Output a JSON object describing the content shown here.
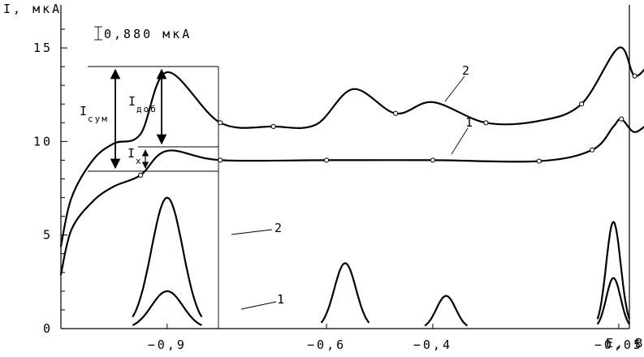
{
  "chart_data": {
    "type": "line",
    "title": "",
    "ylabel": "I, мкА",
    "xlabel": "E, B",
    "scale_label": "0,880 мкА",
    "ylim": [
      0,
      17.3
    ],
    "xlim": [
      -1.1,
      -0.03
    ],
    "y_ticks": [
      {
        "value": 0,
        "label": "0"
      },
      {
        "value": 5,
        "label": "5"
      },
      {
        "value": 10,
        "label": "10"
      },
      {
        "value": 15,
        "label": "15"
      }
    ],
    "x_ticks": [
      {
        "value": -0.9,
        "label": "−0,9"
      },
      {
        "value": -0.6,
        "label": "−0,6"
      },
      {
        "value": -0.4,
        "label": "−0,4"
      },
      {
        "value": -0.05,
        "label": "−0,05"
      }
    ],
    "series": [
      {
        "name": "1",
        "kind": "polarogram",
        "points": [
          [
            -1.1,
            2.9
          ],
          [
            -1.08,
            5.3
          ],
          [
            -1.04,
            6.8
          ],
          [
            -1.0,
            7.6
          ],
          [
            -0.95,
            8.2
          ],
          [
            -0.9,
            9.5
          ],
          [
            -0.8,
            9.0
          ],
          [
            -0.6,
            9.0
          ],
          [
            -0.4,
            9.0
          ],
          [
            -0.2,
            8.95
          ],
          [
            -0.1,
            9.55
          ],
          [
            -0.06,
            10.8
          ],
          [
            -0.045,
            11.2
          ],
          [
            -0.02,
            10.5
          ],
          [
            0.01,
            11.1
          ]
        ]
      },
      {
        "name": "2",
        "kind": "polarogram",
        "points": [
          [
            -1.1,
            4.4
          ],
          [
            -1.08,
            7.0
          ],
          [
            -1.04,
            9.0
          ],
          [
            -1.0,
            9.9
          ],
          [
            -0.95,
            10.4
          ],
          [
            -0.9,
            13.7
          ],
          [
            -0.8,
            11.0
          ],
          [
            -0.7,
            10.8
          ],
          [
            -0.62,
            10.9
          ],
          [
            -0.55,
            12.8
          ],
          [
            -0.47,
            11.5
          ],
          [
            -0.4,
            12.1
          ],
          [
            -0.3,
            11.0
          ],
          [
            -0.2,
            11.1
          ],
          [
            -0.12,
            12.0
          ],
          [
            -0.05,
            15.0
          ],
          [
            -0.02,
            13.5
          ],
          [
            0.01,
            14.3
          ]
        ]
      },
      {
        "name": "1",
        "kind": "peaks",
        "peaks": [
          {
            "center": -0.9,
            "height": 2.0,
            "half_width": 0.065
          }
        ]
      },
      {
        "name": "2",
        "kind": "peaks",
        "peaks": [
          {
            "center": -0.9,
            "height": 7.0,
            "half_width": 0.065
          },
          {
            "center": -0.565,
            "height": 3.5,
            "half_width": 0.045
          },
          {
            "center": -0.375,
            "height": 1.75,
            "half_width": 0.04
          },
          {
            "center": -0.06,
            "height": 5.7,
            "half_width": 0.03
          },
          {
            "center": -0.06,
            "height": 2.7,
            "half_width": 0.03
          }
        ]
      }
    ],
    "annotations": {
      "I_sum": "I",
      "I_sum_sub": "сум",
      "I_add": "I",
      "I_add_sub": "доб",
      "I_x": "I",
      "I_x_sub": "x",
      "curve_labels": [
        "2",
        "1",
        "2",
        "1"
      ]
    }
  }
}
